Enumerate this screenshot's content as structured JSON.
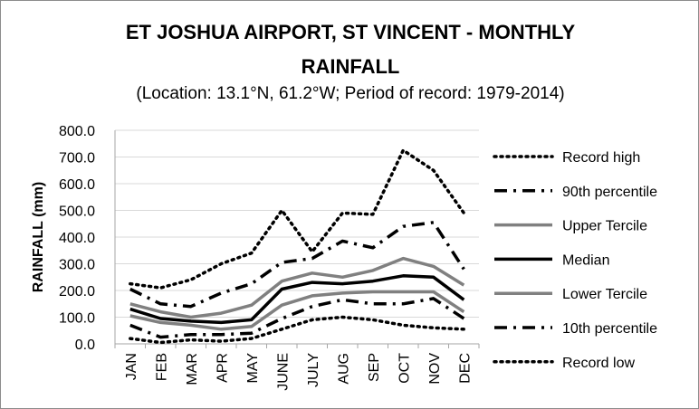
{
  "chart_data": {
    "type": "line",
    "title_line1": "ET JOSHUA AIRPORT, ST VINCENT - MONTHLY",
    "title_line2": "RAINFALL",
    "subtitle": "(Location: 13.1°N, 61.2°W; Period of record: 1979-2014)",
    "ylabel": "RAINFALL (mm)",
    "xlabel": "",
    "ylim": [
      0,
      800
    ],
    "yticks": [
      "0.0",
      "100.0",
      "200.0",
      "300.0",
      "400.0",
      "500.0",
      "600.0",
      "700.0",
      "800.0"
    ],
    "categories": [
      "JAN",
      "FEB",
      "MAR",
      "APR",
      "MAY",
      "JUNE",
      "JULY",
      "AUG",
      "SEP",
      "OCT",
      "NOV",
      "DEC"
    ],
    "legend_position": "right",
    "series": [
      {
        "name": "Record high",
        "style": "dotted",
        "color": "#000000",
        "values": [
          225,
          210,
          240,
          300,
          340,
          500,
          345,
          490,
          485,
          725,
          650,
          490
        ]
      },
      {
        "name": "90th percentile",
        "style": "dashdot",
        "color": "#000000",
        "values": [
          205,
          150,
          140,
          190,
          225,
          305,
          320,
          385,
          360,
          440,
          455,
          280
        ]
      },
      {
        "name": "Upper Tercile",
        "style": "solid",
        "color": "#808080",
        "values": [
          150,
          120,
          100,
          115,
          145,
          235,
          265,
          250,
          275,
          320,
          290,
          220
        ]
      },
      {
        "name": "Median",
        "style": "solid",
        "color": "#000000",
        "values": [
          130,
          95,
          85,
          80,
          90,
          205,
          230,
          225,
          235,
          255,
          250,
          165
        ]
      },
      {
        "name": "Lower Tercile",
        "style": "solid",
        "color": "#808080",
        "values": [
          105,
          80,
          70,
          55,
          65,
          145,
          180,
          190,
          195,
          195,
          195,
          120
        ]
      },
      {
        "name": "10th percentile",
        "style": "dashdot",
        "color": "#000000",
        "values": [
          70,
          25,
          35,
          35,
          40,
          95,
          140,
          165,
          150,
          150,
          170,
          95
        ]
      },
      {
        "name": "Record low",
        "style": "dotted",
        "color": "#000000",
        "values": [
          20,
          5,
          15,
          10,
          20,
          55,
          90,
          100,
          90,
          70,
          60,
          55
        ]
      }
    ]
  }
}
